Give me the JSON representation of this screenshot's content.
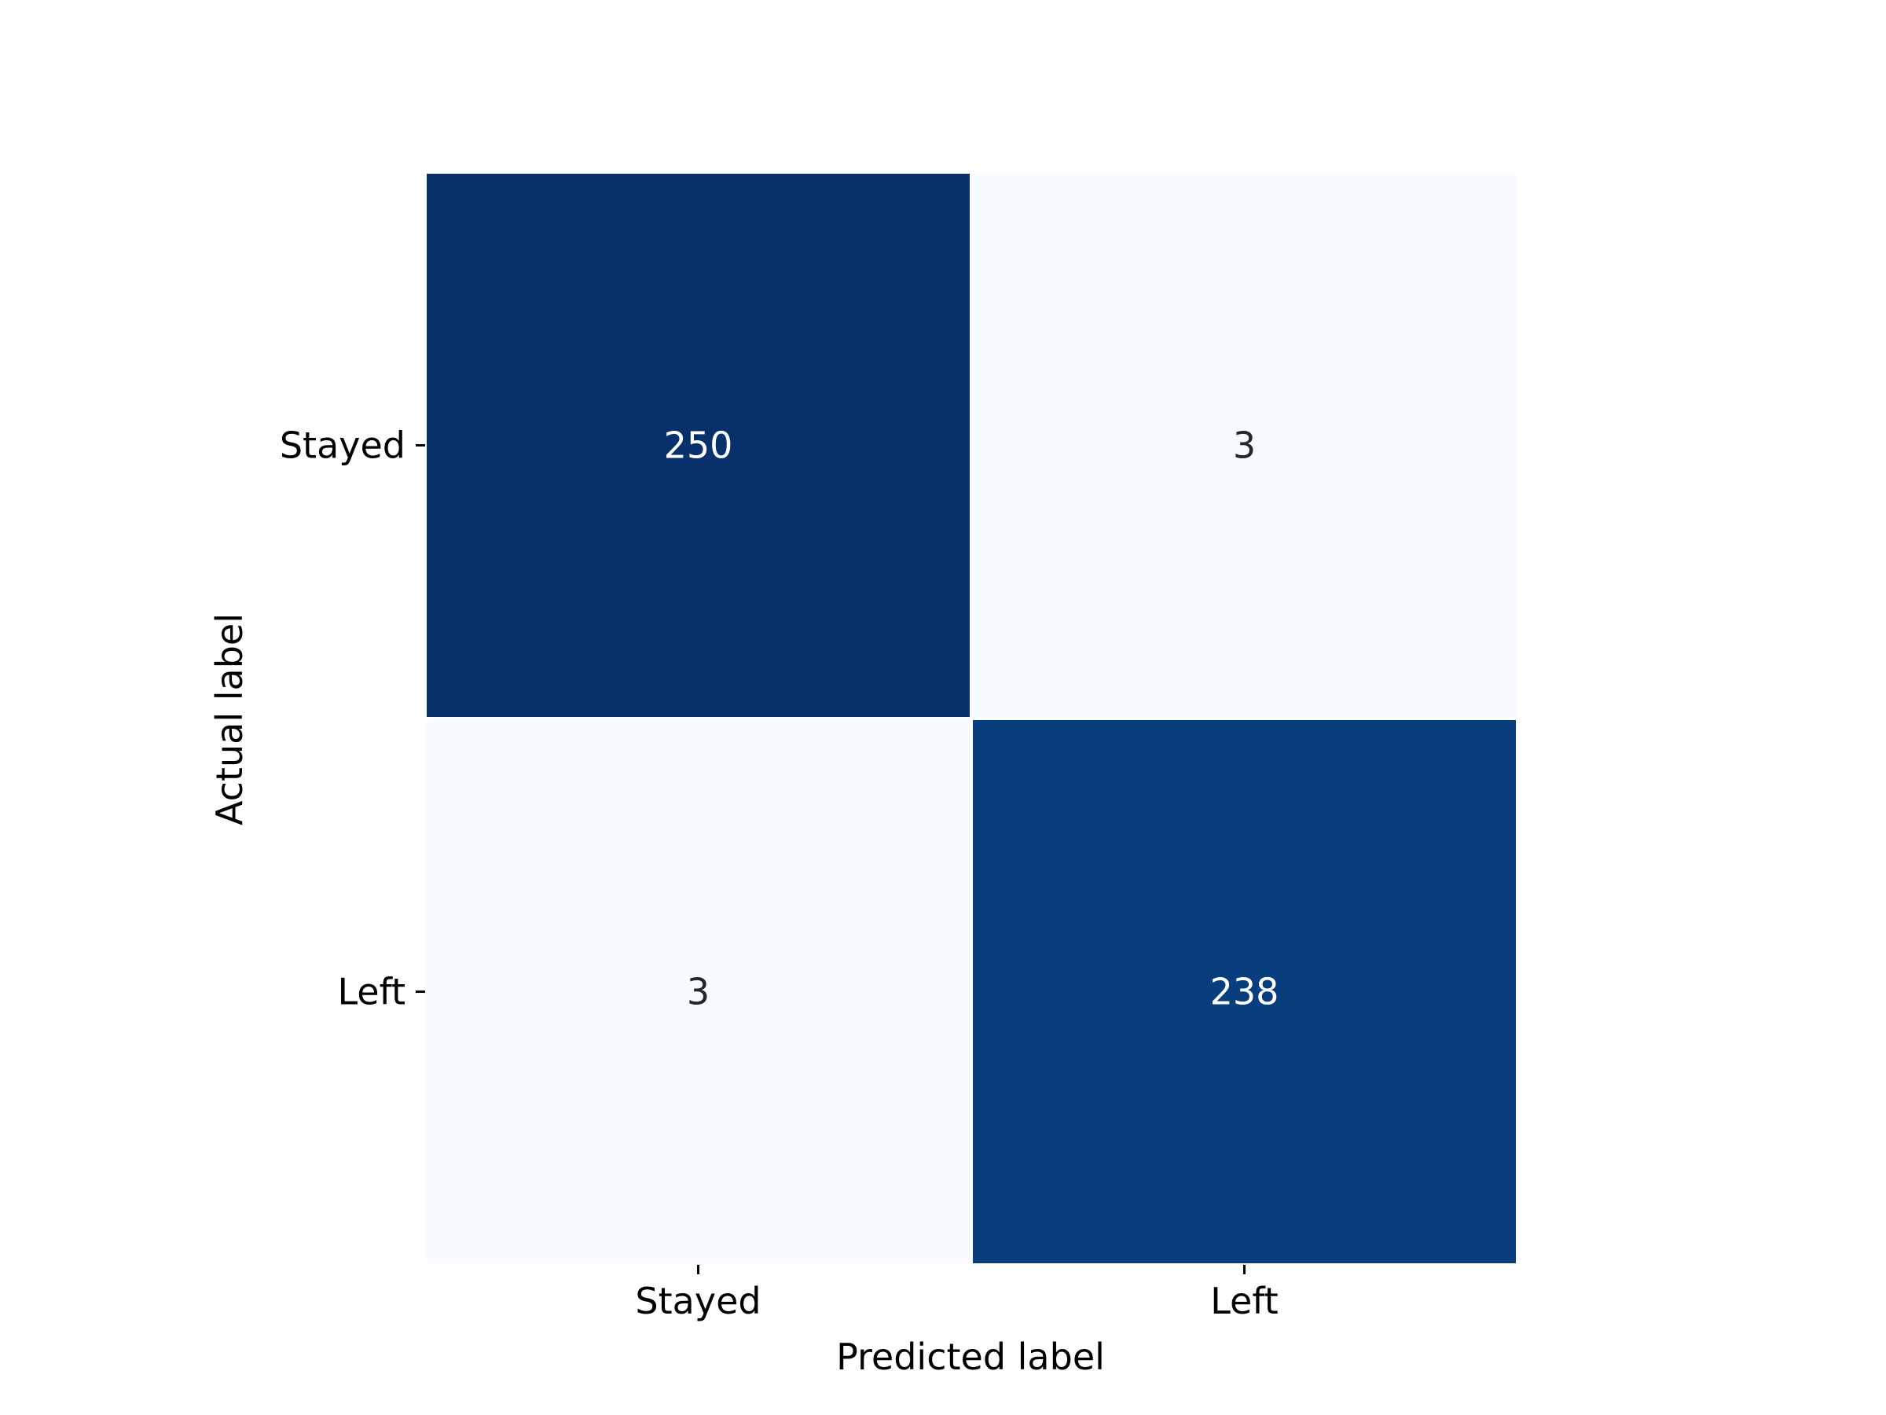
{
  "chart_data": {
    "type": "heatmap",
    "title": "",
    "xlabel": "Predicted label",
    "ylabel": "Actual label",
    "x_categories": [
      "Stayed",
      "Left"
    ],
    "y_categories": [
      "Stayed",
      "Left"
    ],
    "matrix": [
      [
        250,
        3
      ],
      [
        3,
        238
      ]
    ],
    "colormap": "Blues",
    "colors": {
      "high": "#08306b",
      "low": "#f7fbff",
      "text_on_dark": "#ffffff",
      "text_on_light": "#262626"
    },
    "colorbar": false,
    "grid": false
  }
}
